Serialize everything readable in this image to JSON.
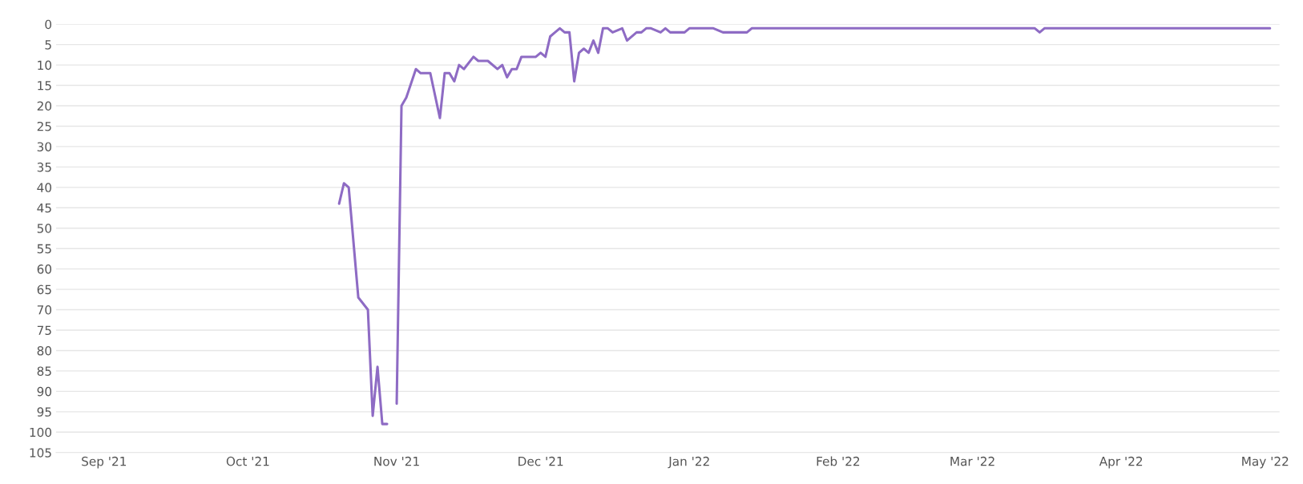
{
  "chart_data": {
    "type": "line",
    "x": [
      "2021-10-20",
      "2021-10-21",
      "2021-10-22",
      "2021-10-24",
      "2021-10-26",
      "2021-10-27",
      "2021-10-28",
      "2021-10-29",
      "2021-10-30",
      "2021-10-31",
      "2021-11-01",
      "2021-11-02",
      "2021-11-03",
      "2021-11-05",
      "2021-11-06",
      "2021-11-08",
      "2021-11-10",
      "2021-11-11",
      "2021-11-12",
      "2021-11-13",
      "2021-11-14",
      "2021-11-15",
      "2021-11-17",
      "2021-11-18",
      "2021-11-20",
      "2021-11-22",
      "2021-11-23",
      "2021-11-24",
      "2021-11-25",
      "2021-11-26",
      "2021-11-27",
      "2021-11-30",
      "2021-12-01",
      "2021-12-02",
      "2021-12-03",
      "2021-12-04",
      "2021-12-05",
      "2021-12-06",
      "2021-12-07",
      "2021-12-08",
      "2021-12-09",
      "2021-12-10",
      "2021-12-11",
      "2021-12-12",
      "2021-12-13",
      "2021-12-14",
      "2021-12-15",
      "2021-12-16",
      "2021-12-18",
      "2021-12-19",
      "2021-12-21",
      "2021-12-22",
      "2021-12-23",
      "2021-12-24",
      "2021-12-26",
      "2021-12-27",
      "2021-12-28",
      "2021-12-31",
      "2022-01-01",
      "2022-01-06",
      "2022-01-08",
      "2022-01-13",
      "2022-01-14",
      "2022-03-14",
      "2022-03-15",
      "2022-03-16",
      "2022-05-02"
    ],
    "series": [
      {
        "color": "#8e6bc4",
        "values": [
          44,
          39,
          40,
          67,
          70,
          96,
          84,
          98,
          98,
          null,
          93,
          20,
          18,
          11,
          12,
          12,
          23,
          12,
          12,
          14,
          10,
          11,
          8,
          9,
          9,
          11,
          10,
          13,
          11,
          11,
          8,
          8,
          7,
          8,
          3,
          2,
          1,
          2,
          2,
          14,
          7,
          6,
          7,
          4,
          7,
          1,
          1,
          2,
          1,
          4,
          2,
          2,
          1,
          1,
          2,
          1,
          2,
          2,
          1,
          1,
          2,
          2,
          1,
          1,
          2,
          1,
          1
        ]
      }
    ],
    "xlim": [
      "2021-08-22",
      "2022-05-04"
    ],
    "xticks": [
      {
        "value": "2021-09-01",
        "label": "Sep '21"
      },
      {
        "value": "2021-10-01",
        "label": "Oct '21"
      },
      {
        "value": "2021-11-01",
        "label": "Nov '21"
      },
      {
        "value": "2021-12-01",
        "label": "Dec '21"
      },
      {
        "value": "2022-01-01",
        "label": "Jan '22"
      },
      {
        "value": "2022-02-01",
        "label": "Feb '22"
      },
      {
        "value": "2022-03-01",
        "label": "Mar '22"
      },
      {
        "value": "2022-04-01",
        "label": "Apr '22"
      },
      {
        "value": "2022-05-01",
        "label": "May '22"
      }
    ],
    "ylim": [
      105,
      0
    ],
    "yticks": [
      0,
      5,
      10,
      15,
      20,
      25,
      30,
      35,
      40,
      45,
      50,
      55,
      60,
      65,
      70,
      75,
      80,
      85,
      90,
      95,
      100,
      105
    ],
    "grid": "y",
    "marker": "none",
    "line_style": "solid"
  }
}
